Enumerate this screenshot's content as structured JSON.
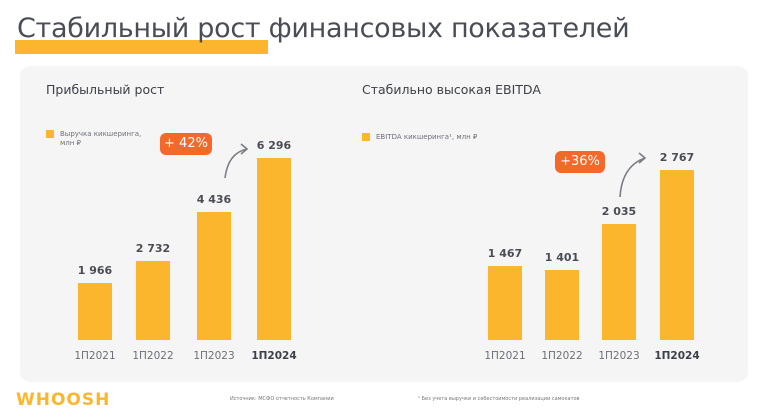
{
  "title": "Стабильный рост финансовых показателей",
  "footer": {
    "logo": "WHOOSH",
    "source": "Источник: МСФО отчетность Компании",
    "footnote": "¹ Без учета выручки и себестоимости реализации самокатов"
  },
  "colors": {
    "bar": "#fbb62d",
    "badge": "#f4692a",
    "card": "#f5f5f5"
  },
  "chart_data": [
    {
      "type": "bar",
      "title": "Прибыльный рост",
      "legend": "Выручка кикшеринга, млн ₽",
      "categories": [
        "1П2021",
        "1П2022",
        "1П2023",
        "1П2024"
      ],
      "values": [
        1966,
        2732,
        4436,
        6296
      ],
      "value_labels": [
        "1 966",
        "2 732",
        "4 436",
        "6 296"
      ],
      "growth": "+ 42%"
    },
    {
      "type": "bar",
      "title": "Стабильно высокая EBITDA",
      "legend": "EBITDA кикшеринга¹, млн ₽",
      "categories": [
        "1П2021",
        "1П2022",
        "1П2023",
        "1П2024"
      ],
      "values": [
        1467,
        1401,
        2035,
        2767
      ],
      "value_labels": [
        "1 467",
        "1 401",
        "2 035",
        "2 767"
      ],
      "growth": "+36%"
    }
  ]
}
